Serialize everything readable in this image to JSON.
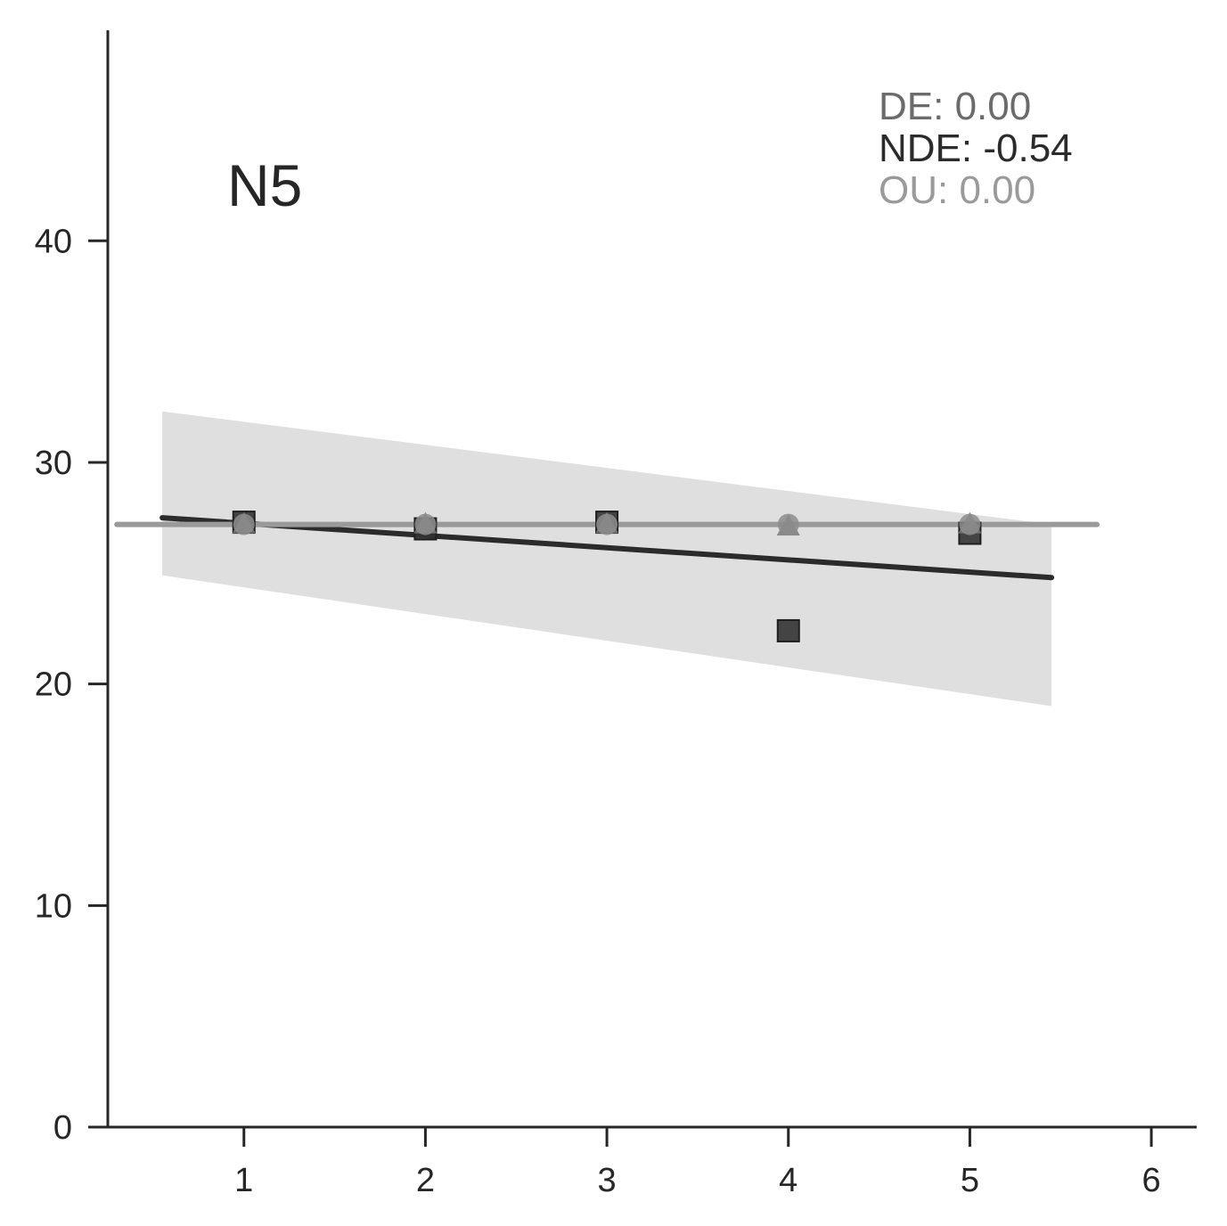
{
  "chart_data": {
    "type": "scatter",
    "title": "N5",
    "xlabel": "",
    "ylabel": "",
    "xlim": [
      0.25,
      6.25
    ],
    "ylim": [
      0,
      49.5
    ],
    "x_ticks": [
      "1",
      "2",
      "3",
      "4",
      "5",
      "6"
    ],
    "y_ticks": [
      "0",
      "10",
      "20",
      "30",
      "40"
    ],
    "grid": false,
    "annotations": [
      {
        "label": "DE: 0.00",
        "color": "#6b6b6b"
      },
      {
        "label": "NDE: -0.54",
        "color": "#2b2b2b"
      },
      {
        "label": "OU: 0.00",
        "color": "#9a9a9a"
      }
    ],
    "series": [
      {
        "marker": "square",
        "color": "#333333",
        "x": [
          1,
          2,
          3,
          4,
          5
        ],
        "y": [
          27.3,
          27.0,
          27.3,
          22.4,
          26.8
        ],
        "fit": {
          "x": [
            0.55,
            5.45
          ],
          "y": [
            27.5,
            24.8
          ]
        },
        "ci": {
          "x": [
            0.55,
            5.45
          ],
          "upper": [
            32.3,
            27.2
          ],
          "lower": [
            24.9,
            19.0
          ]
        }
      },
      {
        "marker": "triangle",
        "color": "#7a7a7a",
        "x": [
          1,
          2,
          3,
          4,
          5
        ],
        "y": [
          27.2,
          27.2,
          27.2,
          27.1,
          27.2
        ]
      },
      {
        "marker": "circle",
        "color": "#8c8c8c",
        "x": [
          1,
          2,
          3,
          4,
          5
        ],
        "y": [
          27.2,
          27.2,
          27.2,
          27.2,
          27.2
        ],
        "fit": {
          "x": [
            0.3,
            5.7
          ],
          "y": [
            27.2,
            27.2
          ]
        }
      }
    ]
  }
}
